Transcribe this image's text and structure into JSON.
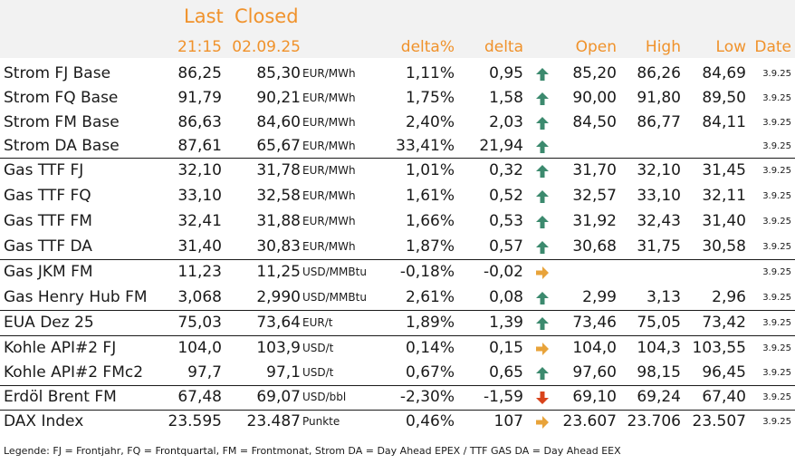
{
  "header": {
    "last_label": "Last",
    "closed_label": "Closed",
    "last_time": "21:15",
    "closed_date": "02.09.25",
    "cols": {
      "delta_pct": "delta%",
      "delta": "delta",
      "open": "Open",
      "high": "High",
      "low": "Low",
      "date": "Date"
    }
  },
  "rows": [
    {
      "name": "Strom FJ Base",
      "last": "86,25",
      "closed": "85,30",
      "unit": "EUR/MWh",
      "delta_pct": "1,11%",
      "delta": "0,95",
      "trend": "up",
      "open": "85,20",
      "high": "86,26",
      "low": "84,69",
      "date": "3.9.25"
    },
    {
      "name": "Strom FQ Base",
      "last": "91,79",
      "closed": "90,21",
      "unit": "EUR/MWh",
      "delta_pct": "1,75%",
      "delta": "1,58",
      "trend": "up",
      "open": "90,00",
      "high": "91,80",
      "low": "89,50",
      "date": "3.9.25"
    },
    {
      "name": "Strom FM Base",
      "last": "86,63",
      "closed": "84,60",
      "unit": "EUR/MWh",
      "delta_pct": "2,40%",
      "delta": "2,03",
      "trend": "up",
      "open": "84,50",
      "high": "86,77",
      "low": "84,11",
      "date": "3.9.25"
    },
    {
      "name": "Strom DA Base",
      "last": "87,61",
      "closed": "65,67",
      "unit": "EUR/MWh",
      "delta_pct": "33,41%",
      "delta": "21,94",
      "trend": "up",
      "open": "",
      "high": "",
      "low": "",
      "date": "3.9.25"
    },
    {
      "name": "Gas TTF FJ",
      "last": "32,10",
      "closed": "31,78",
      "unit": "EUR/MWh",
      "delta_pct": "1,01%",
      "delta": "0,32",
      "trend": "up",
      "open": "31,70",
      "high": "32,10",
      "low": "31,45",
      "date": "3.9.25"
    },
    {
      "name": "Gas TTF FQ",
      "last": "33,10",
      "closed": "32,58",
      "unit": "EUR/MWh",
      "delta_pct": "1,61%",
      "delta": "0,52",
      "trend": "up",
      "open": "32,57",
      "high": "33,10",
      "low": "32,11",
      "date": "3.9.25"
    },
    {
      "name": "Gas TTF FM",
      "last": "32,41",
      "closed": "31,88",
      "unit": "EUR/MWh",
      "delta_pct": "1,66%",
      "delta": "0,53",
      "trend": "up",
      "open": "31,92",
      "high": "32,43",
      "low": "31,40",
      "date": "3.9.25"
    },
    {
      "name": "Gas TTF DA",
      "last": "31,40",
      "closed": "30,83",
      "unit": "EUR/MWh",
      "delta_pct": "1,87%",
      "delta": "0,57",
      "trend": "up",
      "open": "30,68",
      "high": "31,75",
      "low": "30,58",
      "date": "3.9.25"
    },
    {
      "name": "Gas JKM FM",
      "last": "11,23",
      "closed": "11,25",
      "unit": "USD/MMBtu",
      "delta_pct": "-0,18%",
      "delta": "-0,02",
      "trend": "flat",
      "open": "",
      "high": "",
      "low": "",
      "date": "3.9.25"
    },
    {
      "name": "Gas Henry Hub FM",
      "last": "3,068",
      "closed": "2,990",
      "unit": "USD/MMBtu",
      "delta_pct": "2,61%",
      "delta": "0,08",
      "trend": "up",
      "open": "2,99",
      "high": "3,13",
      "low": "2,96",
      "date": "3.9.25"
    },
    {
      "name": "EUA Dez 25",
      "last": "75,03",
      "closed": "73,64",
      "unit": "EUR/t",
      "delta_pct": "1,89%",
      "delta": "1,39",
      "trend": "up",
      "open": "73,46",
      "high": "75,05",
      "low": "73,42",
      "date": "3.9.25"
    },
    {
      "name": "Kohle API#2 FJ",
      "last": "104,0",
      "closed": "103,9",
      "unit": "USD/t",
      "delta_pct": "0,14%",
      "delta": "0,15",
      "trend": "flat",
      "open": "104,0",
      "high": "104,3",
      "low": "103,55",
      "date": "3.9.25"
    },
    {
      "name": "Kohle API#2 FMc2",
      "last": "97,7",
      "closed": "97,1",
      "unit": "USD/t",
      "delta_pct": "0,67%",
      "delta": "0,65",
      "trend": "up",
      "open": "97,60",
      "high": "98,15",
      "low": "96,45",
      "date": "3.9.25"
    },
    {
      "name": "Erdöl Brent FM",
      "last": "67,48",
      "closed": "69,07",
      "unit": "USD/bbl",
      "delta_pct": "-2,30%",
      "delta": "-1,59",
      "trend": "down",
      "open": "69,10",
      "high": "69,24",
      "low": "67,40",
      "date": "3.9.25"
    },
    {
      "name": "DAX Index",
      "last": "23.595",
      "closed": "23.487",
      "unit": "Punkte",
      "delta_pct": "0,46%",
      "delta": "107",
      "trend": "flat",
      "open": "23.607",
      "high": "23.706",
      "low": "23.507",
      "date": "3.9.25"
    }
  ],
  "legend": "Legende: FJ = Frontjahr, FQ = Frontquartal, FM = Frontmonat, Strom DA = Day Ahead EPEX / TTF GAS DA = Day Ahead EEX",
  "colors": {
    "accent": "#f0922b",
    "up": "#3c8a6e",
    "down": "#d9441c",
    "flat": "#e8a33a",
    "header_bg": "#f2f2f2"
  },
  "icons": {
    "up": "arrow-up-icon",
    "down": "arrow-down-icon",
    "flat": "arrow-right-icon"
  }
}
